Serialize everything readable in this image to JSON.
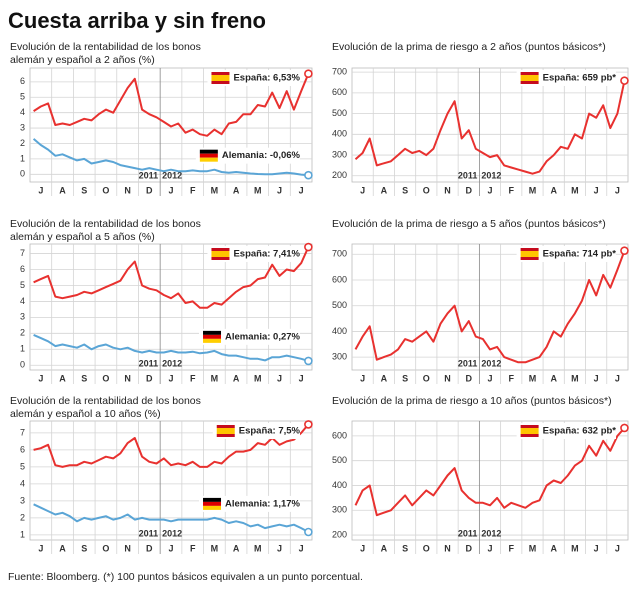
{
  "title": "Cuesta arriba y sin freno",
  "footnote": "Fuente: Bloomberg. (*) 100 puntos básicos equivalen a un punto porcentual.",
  "chart_data": [
    {
      "type": "line",
      "title": [
        "Evolución de la rentabilidad de los bonos",
        "alemán y español a 2 años (%)"
      ],
      "categories": [
        null,
        "J",
        null,
        null,
        "A",
        null,
        null,
        "S",
        null,
        null,
        "O",
        null,
        null,
        "N",
        null,
        null,
        "D",
        null,
        null,
        "J",
        null,
        null,
        "F",
        null,
        null,
        "M",
        null,
        null,
        "A",
        null,
        null,
        "M",
        null,
        null,
        "J",
        null,
        null,
        "J",
        null
      ],
      "series": [
        {
          "name": "España: 6,53%",
          "color": "#e8312f",
          "values": [
            4.1,
            4.4,
            4.6,
            3.2,
            3.3,
            3.2,
            3.4,
            3.6,
            3.5,
            3.9,
            4.2,
            4.0,
            4.8,
            5.6,
            6.2,
            4.2,
            3.9,
            3.7,
            3.4,
            3.1,
            3.3,
            2.7,
            2.9,
            2.6,
            2.5,
            2.9,
            2.6,
            3.3,
            3.4,
            3.9,
            3.9,
            4.5,
            4.4,
            5.3,
            4.3,
            5.4,
            4.2,
            5.4,
            6.53
          ]
        },
        {
          "name": "Alemania: -0,06%",
          "color": "#5aa5d6",
          "values": [
            2.3,
            1.9,
            1.6,
            1.2,
            1.3,
            1.1,
            0.9,
            1.0,
            0.7,
            0.8,
            0.9,
            0.8,
            0.6,
            0.5,
            0.4,
            0.3,
            0.4,
            0.3,
            0.2,
            0.3,
            0.2,
            0.2,
            0.25,
            0.2,
            0.2,
            0.3,
            0.15,
            0.1,
            0.15,
            0.1,
            0.05,
            0.02,
            0.0,
            0.0,
            0.05,
            0.1,
            0.05,
            -0.02,
            -0.06
          ]
        }
      ],
      "ylim": [
        -0.5,
        6.9
      ],
      "yticks": [
        0,
        1,
        2,
        3,
        4,
        5,
        6
      ],
      "grid": true,
      "annotations": [
        "2011",
        "2012"
      ]
    },
    {
      "type": "line",
      "title": [
        "Evolución de la prima de riesgo a 2 años (puntos básicos*)"
      ],
      "categories": [
        null,
        "J",
        null,
        null,
        "A",
        null,
        null,
        "S",
        null,
        null,
        "O",
        null,
        null,
        "N",
        null,
        null,
        "D",
        null,
        null,
        "J",
        null,
        null,
        "F",
        null,
        null,
        "M",
        null,
        null,
        "A",
        null,
        null,
        "M",
        null,
        null,
        "J",
        null,
        null,
        "J",
        null
      ],
      "series": [
        {
          "name": "España: 659 pb*",
          "color": "#e8312f",
          "values": [
            280,
            310,
            380,
            250,
            260,
            270,
            300,
            330,
            310,
            320,
            300,
            330,
            420,
            500,
            560,
            380,
            420,
            330,
            310,
            290,
            300,
            250,
            240,
            230,
            220,
            210,
            220,
            270,
            300,
            340,
            330,
            400,
            380,
            500,
            480,
            540,
            430,
            500,
            659
          ]
        }
      ],
      "ylim": [
        170,
        720
      ],
      "yticks": [
        200,
        300,
        400,
        500,
        600,
        700
      ],
      "grid": true,
      "annotations": [
        "2011",
        "2012"
      ]
    },
    {
      "type": "line",
      "title": [
        "Evolución de la rentabilidad de los bonos",
        "alemán y español a 5 años (%)"
      ],
      "categories": [
        null,
        "J",
        null,
        null,
        "A",
        null,
        null,
        "S",
        null,
        null,
        "O",
        null,
        null,
        "N",
        null,
        null,
        "D",
        null,
        null,
        "J",
        null,
        null,
        "F",
        null,
        null,
        "M",
        null,
        null,
        "A",
        null,
        null,
        "M",
        null,
        null,
        "J",
        null,
        null,
        "J",
        null
      ],
      "series": [
        {
          "name": "España: 7,41%",
          "color": "#e8312f",
          "values": [
            5.2,
            5.4,
            5.6,
            4.3,
            4.2,
            4.3,
            4.4,
            4.6,
            4.5,
            4.7,
            4.9,
            5.1,
            5.3,
            6.0,
            6.5,
            5.0,
            4.8,
            4.7,
            4.4,
            4.2,
            4.5,
            3.9,
            4.0,
            3.6,
            3.6,
            3.9,
            3.8,
            4.2,
            4.6,
            4.9,
            5.0,
            5.4,
            5.5,
            6.3,
            5.6,
            6.0,
            5.9,
            6.4,
            7.41
          ]
        },
        {
          "name": "Alemania: 0,27%",
          "color": "#5aa5d6",
          "values": [
            1.9,
            1.7,
            1.5,
            1.2,
            1.3,
            1.2,
            1.1,
            1.3,
            1.0,
            1.2,
            1.3,
            1.1,
            1.0,
            1.1,
            0.9,
            0.8,
            0.9,
            0.8,
            0.8,
            0.9,
            0.8,
            0.8,
            0.85,
            0.75,
            0.8,
            0.9,
            0.7,
            0.6,
            0.6,
            0.5,
            0.4,
            0.4,
            0.3,
            0.5,
            0.5,
            0.6,
            0.5,
            0.4,
            0.27
          ]
        }
      ],
      "ylim": [
        -0.3,
        7.6
      ],
      "yticks": [
        0,
        1,
        2,
        3,
        4,
        5,
        6,
        7
      ],
      "grid": true,
      "annotations": [
        "2011",
        "2012"
      ]
    },
    {
      "type": "line",
      "title": [
        "Evolución de la prima de riesgo a 5 años (puntos básicos*)"
      ],
      "categories": [
        null,
        "J",
        null,
        null,
        "A",
        null,
        null,
        "S",
        null,
        null,
        "O",
        null,
        null,
        "N",
        null,
        null,
        "D",
        null,
        null,
        "J",
        null,
        null,
        "F",
        null,
        null,
        "M",
        null,
        null,
        "A",
        null,
        null,
        "M",
        null,
        null,
        "J",
        null,
        null,
        "J",
        null
      ],
      "series": [
        {
          "name": "España: 714 pb*",
          "color": "#e8312f",
          "values": [
            330,
            380,
            420,
            290,
            300,
            310,
            330,
            370,
            360,
            380,
            400,
            360,
            430,
            470,
            500,
            400,
            440,
            380,
            370,
            330,
            340,
            300,
            290,
            280,
            280,
            290,
            300,
            340,
            400,
            380,
            430,
            470,
            520,
            600,
            540,
            620,
            570,
            640,
            714
          ]
        }
      ],
      "ylim": [
        250,
        740
      ],
      "yticks": [
        300,
        400,
        500,
        600,
        700
      ],
      "grid": true,
      "annotations": [
        "2011",
        "2012"
      ]
    },
    {
      "type": "line",
      "title": [
        "Evolución de la rentabilidad de los bonos",
        "alemán y español a 10 años (%)"
      ],
      "categories": [
        null,
        "J",
        null,
        null,
        "A",
        null,
        null,
        "S",
        null,
        null,
        "O",
        null,
        null,
        "N",
        null,
        null,
        "D",
        null,
        null,
        "J",
        null,
        null,
        "F",
        null,
        null,
        "M",
        null,
        null,
        "A",
        null,
        null,
        "M",
        null,
        null,
        "J",
        null,
        null,
        "J",
        null
      ],
      "series": [
        {
          "name": "España: 7,5%",
          "color": "#e8312f",
          "values": [
            6.0,
            6.1,
            6.3,
            5.1,
            5.0,
            5.1,
            5.1,
            5.3,
            5.2,
            5.4,
            5.6,
            5.5,
            5.8,
            6.4,
            6.7,
            5.6,
            5.3,
            5.2,
            5.5,
            5.1,
            5.2,
            5.1,
            5.3,
            5.0,
            5.0,
            5.3,
            5.2,
            5.6,
            5.9,
            5.9,
            6.0,
            6.4,
            6.3,
            6.7,
            6.3,
            6.5,
            6.6,
            7.0,
            7.5
          ]
        },
        {
          "name": "Alemania: 1,17%",
          "color": "#5aa5d6",
          "values": [
            2.8,
            2.6,
            2.4,
            2.2,
            2.3,
            2.1,
            1.8,
            2.0,
            1.9,
            2.0,
            2.1,
            1.9,
            2.0,
            2.2,
            1.9,
            2.0,
            1.9,
            1.9,
            1.9,
            1.8,
            1.9,
            1.9,
            1.9,
            1.9,
            1.9,
            2.0,
            1.9,
            1.7,
            1.8,
            1.7,
            1.5,
            1.6,
            1.4,
            1.5,
            1.6,
            1.5,
            1.6,
            1.4,
            1.17
          ]
        }
      ],
      "ylim": [
        0.7,
        7.7
      ],
      "yticks": [
        1,
        2,
        3,
        4,
        5,
        6,
        7
      ],
      "grid": true,
      "annotations": [
        "2011",
        "2012"
      ]
    },
    {
      "type": "line",
      "title": [
        "Evolución de la prima de riesgo a 10 años (puntos básicos*)"
      ],
      "categories": [
        null,
        "J",
        null,
        null,
        "A",
        null,
        null,
        "S",
        null,
        null,
        "O",
        null,
        null,
        "N",
        null,
        null,
        "D",
        null,
        null,
        "J",
        null,
        null,
        "F",
        null,
        null,
        "M",
        null,
        null,
        "A",
        null,
        null,
        "M",
        null,
        null,
        "J",
        null,
        null,
        "J",
        null
      ],
      "series": [
        {
          "name": "España: 632 pb*",
          "color": "#e8312f",
          "values": [
            320,
            380,
            400,
            280,
            290,
            300,
            330,
            360,
            320,
            350,
            380,
            360,
            400,
            440,
            470,
            380,
            350,
            330,
            330,
            320,
            350,
            310,
            330,
            320,
            310,
            330,
            340,
            400,
            420,
            410,
            440,
            480,
            500,
            560,
            520,
            580,
            540,
            600,
            632
          ]
        }
      ],
      "ylim": [
        180,
        660
      ],
      "yticks": [
        200,
        300,
        400,
        500,
        600
      ],
      "grid": true,
      "annotations": [
        "2011",
        "2012"
      ]
    }
  ]
}
